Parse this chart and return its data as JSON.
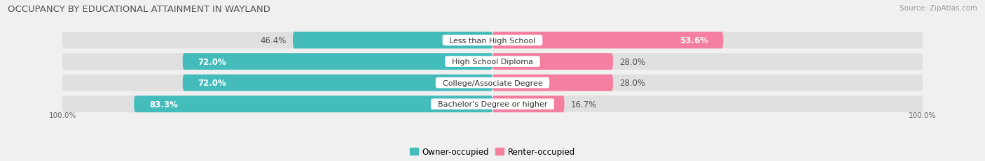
{
  "title": "OCCUPANCY BY EDUCATIONAL ATTAINMENT IN WAYLAND",
  "source": "Source: ZipAtlas.com",
  "categories": [
    "Less than High School",
    "High School Diploma",
    "College/Associate Degree",
    "Bachelor's Degree or higher"
  ],
  "owner_pct": [
    46.4,
    72.0,
    72.0,
    83.3
  ],
  "renter_pct": [
    53.6,
    28.0,
    28.0,
    16.7
  ],
  "owner_color": "#45BCBC",
  "renter_color": "#F47FA0",
  "bar_height": 0.78,
  "bg_bar_color": "#e0e0e0",
  "background_color": "#f0f0f0",
  "row_bg_color": "#e8e8e8",
  "axis_label_left": "100.0%",
  "axis_label_right": "100.0%",
  "label_fontsize": 8.5,
  "cat_fontsize": 8.0,
  "title_fontsize": 9.5,
  "legend_fontsize": 8.5,
  "source_fontsize": 7.5
}
